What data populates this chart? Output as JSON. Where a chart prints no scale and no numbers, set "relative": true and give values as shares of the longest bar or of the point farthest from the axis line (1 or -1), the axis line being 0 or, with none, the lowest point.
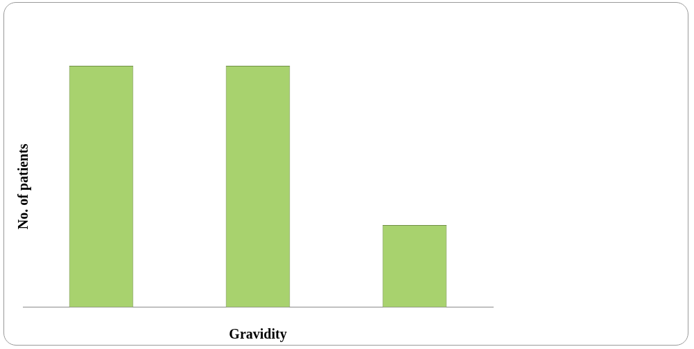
{
  "chart_data": {
    "type": "bar",
    "relative": true,
    "xlabel": "Gravidity",
    "ylabel": "No. of patients",
    "categories": [
      null,
      null,
      null
    ],
    "values": [
      1,
      1,
      0.34
    ],
    "color": "#a8d26e",
    "grid": false,
    "legend": false
  }
}
